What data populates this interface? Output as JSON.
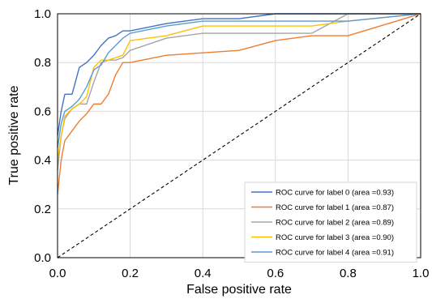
{
  "chart_data": {
    "type": "line",
    "title": "",
    "xlabel": "False positive rate",
    "ylabel": "True positive rate",
    "xlim": [
      0.0,
      1.0
    ],
    "ylim": [
      0.0,
      1.0
    ],
    "x_ticks": [
      "0.0",
      "0.2",
      "0.4",
      "0.6",
      "0.8",
      "1.0"
    ],
    "y_ticks": [
      "0.0",
      "0.2",
      "0.4",
      "0.6",
      "0.8",
      "1.0"
    ],
    "grid": true,
    "legend_position": "bottom-right",
    "reference_line": {
      "style": "dashed",
      "color": "#000000",
      "points": [
        [
          0,
          0
        ],
        [
          1,
          1
        ]
      ]
    },
    "series": [
      {
        "name": "ROC curve for label 0 (area =0.93)",
        "color": "#4472c4",
        "points": [
          [
            0,
            0.5
          ],
          [
            0.01,
            0.6
          ],
          [
            0.02,
            0.67
          ],
          [
            0.04,
            0.67
          ],
          [
            0.06,
            0.78
          ],
          [
            0.08,
            0.8
          ],
          [
            0.1,
            0.83
          ],
          [
            0.12,
            0.87
          ],
          [
            0.14,
            0.9
          ],
          [
            0.16,
            0.91
          ],
          [
            0.18,
            0.93
          ],
          [
            0.2,
            0.93
          ],
          [
            0.3,
            0.96
          ],
          [
            0.4,
            0.98
          ],
          [
            0.5,
            0.98
          ],
          [
            0.6,
            1.0
          ],
          [
            1,
            1.0
          ]
        ]
      },
      {
        "name": "ROC curve for label 1 (area =0.87)",
        "color": "#ed7d31",
        "points": [
          [
            0,
            0.26
          ],
          [
            0.01,
            0.4
          ],
          [
            0.02,
            0.48
          ],
          [
            0.04,
            0.52
          ],
          [
            0.06,
            0.56
          ],
          [
            0.08,
            0.59
          ],
          [
            0.1,
            0.63
          ],
          [
            0.12,
            0.63
          ],
          [
            0.14,
            0.67
          ],
          [
            0.16,
            0.75
          ],
          [
            0.18,
            0.8
          ],
          [
            0.2,
            0.8
          ],
          [
            0.3,
            0.83
          ],
          [
            0.4,
            0.84
          ],
          [
            0.5,
            0.85
          ],
          [
            0.6,
            0.89
          ],
          [
            0.7,
            0.91
          ],
          [
            0.8,
            0.91
          ],
          [
            1,
            1.0
          ]
        ]
      },
      {
        "name": "ROC curve for label 2 (area =0.89)",
        "color": "#a5a5a5",
        "points": [
          [
            0,
            0.36
          ],
          [
            0.01,
            0.5
          ],
          [
            0.02,
            0.57
          ],
          [
            0.04,
            0.61
          ],
          [
            0.06,
            0.63
          ],
          [
            0.08,
            0.63
          ],
          [
            0.1,
            0.72
          ],
          [
            0.12,
            0.8
          ],
          [
            0.14,
            0.81
          ],
          [
            0.16,
            0.81
          ],
          [
            0.18,
            0.82
          ],
          [
            0.2,
            0.85
          ],
          [
            0.3,
            0.9
          ],
          [
            0.4,
            0.92
          ],
          [
            0.5,
            0.92
          ],
          [
            0.6,
            0.92
          ],
          [
            0.7,
            0.92
          ],
          [
            0.8,
            1.0
          ],
          [
            1,
            1.0
          ]
        ]
      },
      {
        "name": "ROC curve for label 3 (area =0.90)",
        "color": "#ffc000",
        "points": [
          [
            0,
            0.4
          ],
          [
            0.01,
            0.5
          ],
          [
            0.02,
            0.58
          ],
          [
            0.04,
            0.61
          ],
          [
            0.06,
            0.63
          ],
          [
            0.08,
            0.66
          ],
          [
            0.1,
            0.78
          ],
          [
            0.12,
            0.81
          ],
          [
            0.14,
            0.81
          ],
          [
            0.16,
            0.82
          ],
          [
            0.18,
            0.83
          ],
          [
            0.2,
            0.89
          ],
          [
            0.3,
            0.91
          ],
          [
            0.4,
            0.95
          ],
          [
            0.5,
            0.95
          ],
          [
            0.6,
            0.95
          ],
          [
            0.7,
            0.95
          ],
          [
            0.8,
            0.97
          ],
          [
            1,
            1.0
          ]
        ]
      },
      {
        "name": "ROC curve for label 4 (area =0.91)",
        "color": "#5b9bd5",
        "points": [
          [
            0,
            0.45
          ],
          [
            0.01,
            0.55
          ],
          [
            0.02,
            0.6
          ],
          [
            0.04,
            0.62
          ],
          [
            0.06,
            0.65
          ],
          [
            0.08,
            0.7
          ],
          [
            0.1,
            0.77
          ],
          [
            0.12,
            0.79
          ],
          [
            0.14,
            0.84
          ],
          [
            0.16,
            0.87
          ],
          [
            0.18,
            0.9
          ],
          [
            0.2,
            0.92
          ],
          [
            0.3,
            0.95
          ],
          [
            0.4,
            0.97
          ],
          [
            0.5,
            0.97
          ],
          [
            0.6,
            0.97
          ],
          [
            0.7,
            0.97
          ],
          [
            0.8,
            0.97
          ],
          [
            1,
            1.0
          ]
        ]
      }
    ]
  }
}
